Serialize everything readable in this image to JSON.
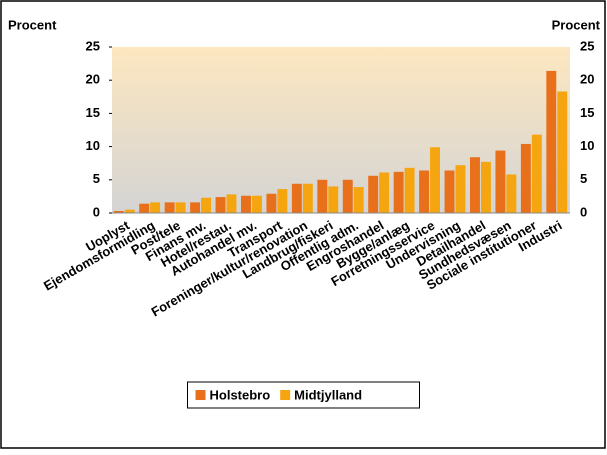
{
  "chart_data": {
    "type": "bar",
    "y_label": "Procent",
    "y2_label": "Procent",
    "categories": [
      "Uoplyst",
      "Ejendomsformidling",
      "Post/tele",
      "Finans mv.",
      "Hotel/restau.",
      "Autohandel mv.",
      "Transport",
      "Foreninger/kultur/renovation",
      "Landbrug/fiskeri",
      "Offentlig adm.",
      "Engroshandel",
      "Bygge/anlæg",
      "Forretningsservice",
      "Undervisning",
      "Detailhandel",
      "Sundhedsvæsen",
      "Sociale institutioner",
      "Industri"
    ],
    "series": [
      {
        "name": "Holstebro",
        "color": "#e8701a",
        "values": [
          0.3,
          1.4,
          1.6,
          1.6,
          2.4,
          2.6,
          2.9,
          4.4,
          5.0,
          5.0,
          5.6,
          6.2,
          6.4,
          6.4,
          8.4,
          9.4,
          10.4,
          21.4
        ]
      },
      {
        "name": "Midtjylland",
        "color": "#f5a50f",
        "values": [
          0.5,
          1.6,
          1.6,
          2.3,
          2.8,
          2.6,
          3.6,
          4.4,
          4.0,
          3.9,
          6.1,
          6.8,
          9.9,
          7.2,
          7.7,
          5.8,
          11.8,
          18.3
        ]
      }
    ],
    "ylim": [
      0,
      25
    ],
    "yticks": [
      0,
      5,
      10,
      15,
      20,
      25
    ],
    "y2lim": [
      0,
      25
    ],
    "y2ticks": [
      0,
      5,
      10,
      15,
      20,
      25
    ],
    "legend": "bottom"
  }
}
